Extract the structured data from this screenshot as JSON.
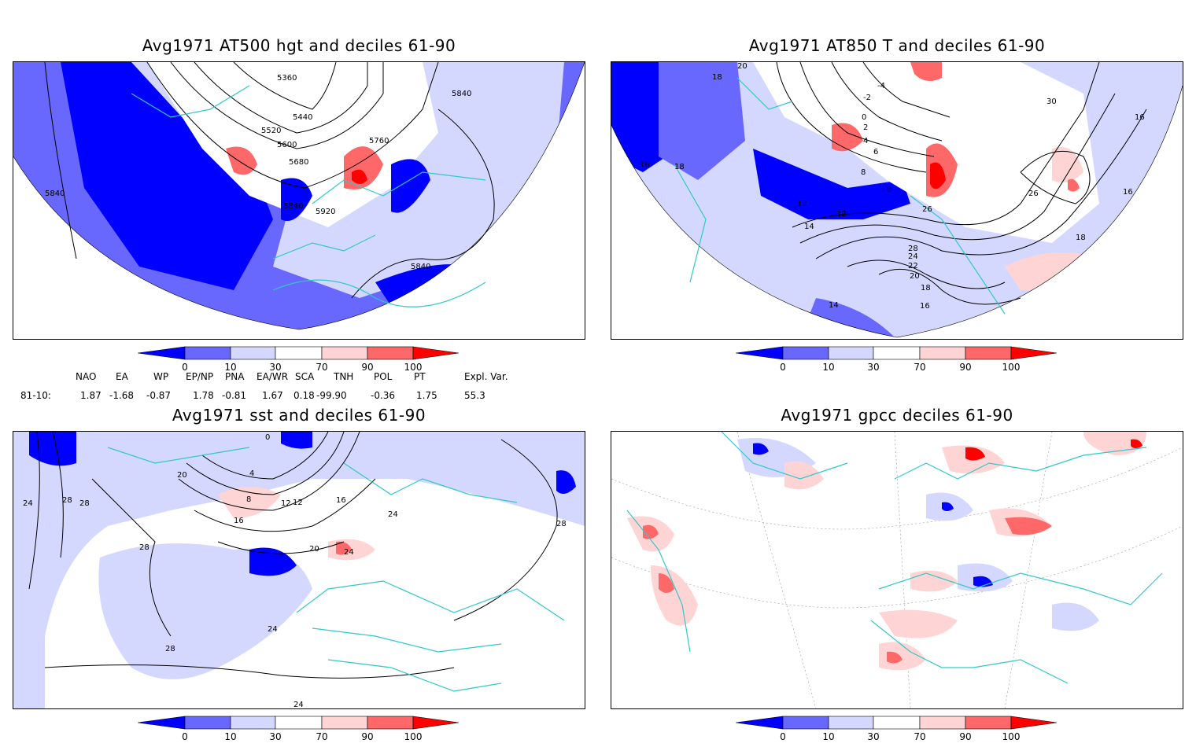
{
  "panels": [
    {
      "title": "Avg1971 AT500 hgt and deciles 61-90",
      "contour_labels": [
        "5360",
        "5440",
        "5520",
        "5600",
        "5680",
        "5760",
        "5840",
        "5920",
        "5840",
        "5840",
        "5840",
        "5840"
      ]
    },
    {
      "title": "Avg1971 AT850 T and deciles 61-90",
      "contour_labels": [
        "20",
        "18",
        "-4",
        "-2",
        "0",
        "2",
        "4",
        "6",
        "8",
        "10",
        "12",
        "12",
        "14",
        "16",
        "18",
        "14",
        "16",
        "18",
        "20",
        "22",
        "24",
        "26",
        "28",
        "30",
        "26",
        "16",
        "16",
        "18"
      ]
    },
    {
      "title": "Avg1971 sst and deciles 61-90",
      "contour_labels": [
        "24",
        "28",
        "28",
        "28",
        "20",
        "16",
        "12",
        "8",
        "4",
        "0",
        "24",
        "20",
        "24",
        "28",
        "24",
        "28",
        "24",
        "16",
        "12"
      ]
    },
    {
      "title": "Avg1971 gpcc deciles 61-90",
      "contour_labels": []
    }
  ],
  "colorbar": {
    "ticks": [
      "0",
      "10",
      "30",
      "70",
      "90",
      "100"
    ],
    "colors": [
      "#0000ff",
      "#6868ff",
      "#d4d8ff",
      "#ffffff",
      "#ffd4d4",
      "#ff6868",
      "#ff0000"
    ]
  },
  "indices": {
    "headers": [
      "NAO",
      "EA",
      "WP",
      "EP/NP",
      "PNA",
      "EA/WR",
      "SCA",
      "TNH",
      "POL",
      "PT",
      "Expl. Var."
    ],
    "row_label": "81-10:",
    "values": [
      "1.87",
      "-1.68",
      "-0.87",
      "1.78",
      "-0.81",
      "1.67",
      "0.18",
      "-99.90",
      "-0.36",
      "1.75",
      "55.3"
    ]
  }
}
